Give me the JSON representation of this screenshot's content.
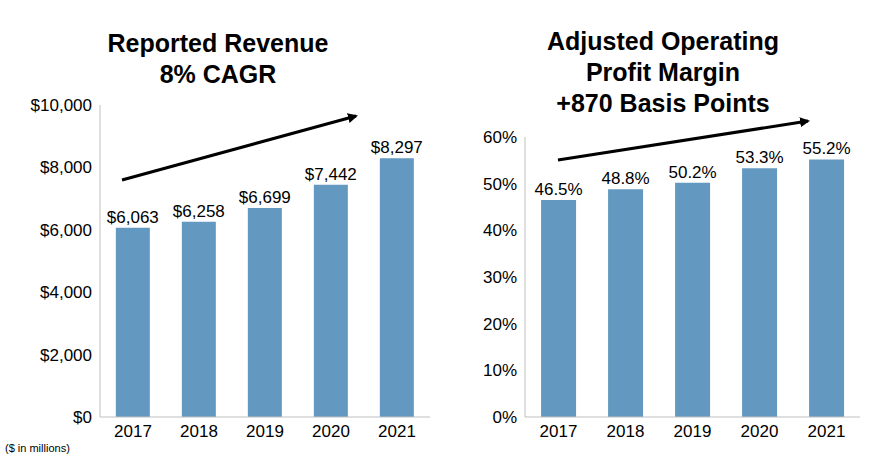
{
  "chart_data": [
    {
      "type": "bar",
      "title": "Reported Revenue",
      "subtitle": "8% CAGR",
      "annotation": "($ in millions)",
      "categories": [
        "2017",
        "2018",
        "2019",
        "2020",
        "2021"
      ],
      "values": [
        6063,
        6258,
        6699,
        7442,
        8297
      ],
      "value_labels": [
        "$6,063",
        "$6,258",
        "$6,699",
        "$7,442",
        "$8,297"
      ],
      "color": "#6399c1",
      "ylim": [
        0,
        10000
      ],
      "yticks": [
        {
          "value": 0,
          "label": "$0"
        },
        {
          "value": 2000,
          "label": "$2,000"
        },
        {
          "value": 4000,
          "label": "$4,000"
        },
        {
          "value": 6000,
          "label": "$6,000"
        },
        {
          "value": 8000,
          "label": "$8,000"
        },
        {
          "value": 10000,
          "label": "$10,000"
        }
      ],
      "grid": false,
      "data_labels": true
    },
    {
      "type": "bar",
      "title": "Adjusted Operating\nProfit Margin",
      "subtitle": "+870 Basis Points",
      "categories": [
        "2017",
        "2018",
        "2019",
        "2020",
        "2021"
      ],
      "values": [
        46.5,
        48.8,
        50.2,
        53.3,
        55.2
      ],
      "value_labels": [
        "46.5%",
        "48.8%",
        "50.2%",
        "53.3%",
        "55.2%"
      ],
      "color": "#6399c1",
      "ylim": [
        0,
        60
      ],
      "yticks": [
        {
          "value": 0,
          "label": "0%"
        },
        {
          "value": 10,
          "label": "10%"
        },
        {
          "value": 20,
          "label": "20%"
        },
        {
          "value": 30,
          "label": "30%"
        },
        {
          "value": 40,
          "label": "40%"
        },
        {
          "value": 50,
          "label": "50%"
        },
        {
          "value": 60,
          "label": "60%"
        }
      ],
      "grid": false,
      "data_labels": true
    }
  ]
}
